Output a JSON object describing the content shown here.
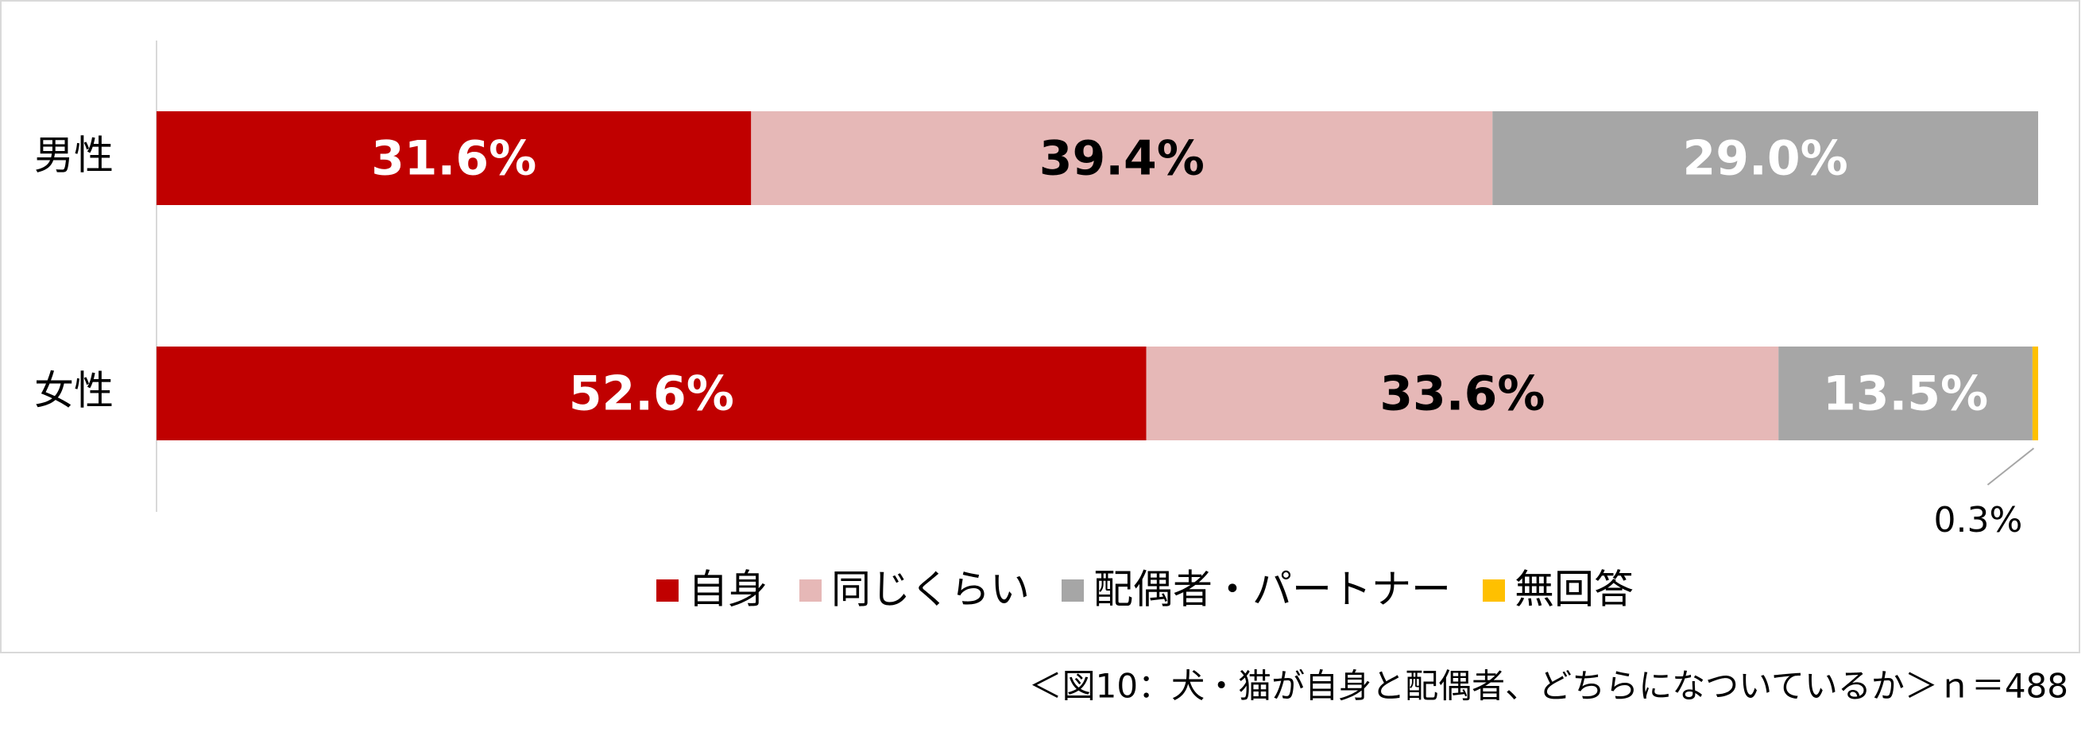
{
  "chart_data": {
    "type": "stacked-bar-horizontal",
    "categories": [
      "男性",
      "女性"
    ],
    "series": [
      {
        "name": "自身",
        "color": "#c00000",
        "label_color": "#ffffff",
        "values": [
          31.6,
          52.6
        ],
        "value_labels": [
          "31.6%",
          "52.6%"
        ]
      },
      {
        "name": "同じくらい",
        "color": "#e6b8b7",
        "label_color": "#000000",
        "values": [
          39.4,
          33.6
        ],
        "value_labels": [
          "39.4%",
          "33.6%"
        ]
      },
      {
        "name": "配偶者・パートナー",
        "color": "#a6a6a6",
        "label_color": "#ffffff",
        "values": [
          29.0,
          13.5
        ],
        "value_labels": [
          "29.0%",
          "13.5%"
        ]
      },
      {
        "name": "無回答",
        "color": "#ffc000",
        "label_color": "#000000",
        "values": [
          0,
          0.3
        ],
        "value_labels": [
          null,
          "0.3%"
        ]
      }
    ],
    "xlim": [
      0,
      100
    ],
    "legend": "bottom",
    "caption": "＜図10：犬・猫が自身と配偶者、どちらになついているか＞ｎ＝488"
  }
}
